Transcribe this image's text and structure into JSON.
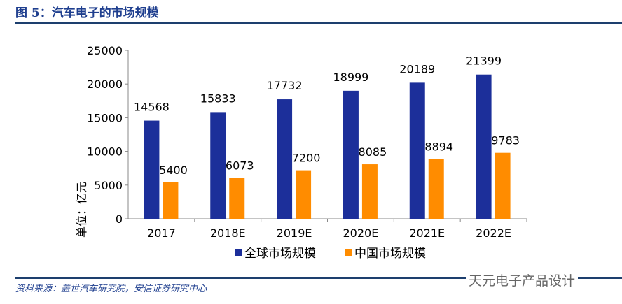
{
  "title": "图 5：汽车电子的市场规模",
  "source": "资料来源：盖世汽车研究院，安信证券研究中心",
  "watermark": "天元电子产品设计",
  "chart_data": {
    "type": "bar",
    "categories": [
      "2017",
      "2018E",
      "2019E",
      "2020E",
      "2021E",
      "2022E"
    ],
    "series": [
      {
        "name": "全球市场规模",
        "color": "#1c2f9a",
        "values": [
          14568,
          15833,
          17732,
          18999,
          20189,
          21399
        ]
      },
      {
        "name": "中国市场规模",
        "color": "#ff8c00",
        "values": [
          5400,
          6073,
          7200,
          8085,
          8894,
          9783
        ]
      }
    ],
    "ylabel": "单位：亿元",
    "ylim": [
      0,
      25000
    ],
    "yticks": [
      0,
      5000,
      10000,
      15000,
      20000,
      25000
    ],
    "grid": false,
    "legend": "bottom"
  }
}
